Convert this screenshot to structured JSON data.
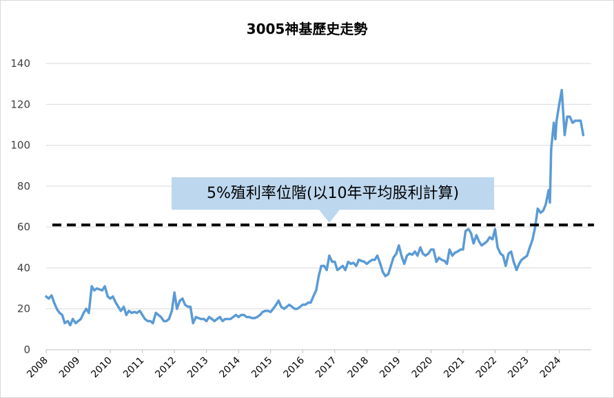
{
  "chart_data": {
    "type": "line",
    "title": "3005神基歷史走勢",
    "xlabel": "",
    "ylabel": "",
    "ylim": [
      0,
      140
    ],
    "yticks": [
      "0",
      "20",
      "40",
      "60",
      "80",
      "100",
      "120",
      "140"
    ],
    "xlim": [
      2008,
      2025
    ],
    "xticks": [
      "2008",
      "2009",
      "2010",
      "2011",
      "2012",
      "2013",
      "2014",
      "2015",
      "2016",
      "2017",
      "2018",
      "2019",
      "2020",
      "2021",
      "2022",
      "2023",
      "2024"
    ],
    "grid": "horizontal",
    "series": [
      {
        "color": "#5b9bd5",
        "points": [
          [
            2008.0,
            26
          ],
          [
            2008.08,
            25
          ],
          [
            2008.17,
            26.5
          ],
          [
            2008.25,
            23
          ],
          [
            2008.33,
            20
          ],
          [
            2008.42,
            18
          ],
          [
            2008.5,
            17
          ],
          [
            2008.58,
            13
          ],
          [
            2008.67,
            14
          ],
          [
            2008.75,
            12
          ],
          [
            2008.83,
            15
          ],
          [
            2008.92,
            13
          ],
          [
            2009.0,
            14
          ],
          [
            2009.08,
            15
          ],
          [
            2009.17,
            18
          ],
          [
            2009.25,
            20
          ],
          [
            2009.33,
            18
          ],
          [
            2009.42,
            31
          ],
          [
            2009.5,
            29
          ],
          [
            2009.58,
            30
          ],
          [
            2009.67,
            29.5
          ],
          [
            2009.75,
            29
          ],
          [
            2009.83,
            31
          ],
          [
            2009.92,
            26
          ],
          [
            2010.0,
            25
          ],
          [
            2010.08,
            26
          ],
          [
            2010.17,
            23
          ],
          [
            2010.25,
            21
          ],
          [
            2010.33,
            19
          ],
          [
            2010.42,
            21
          ],
          [
            2010.5,
            17
          ],
          [
            2010.58,
            19
          ],
          [
            2010.67,
            18
          ],
          [
            2010.75,
            18.5
          ],
          [
            2010.83,
            18
          ],
          [
            2010.92,
            19
          ],
          [
            2011.0,
            17
          ],
          [
            2011.08,
            15
          ],
          [
            2011.17,
            14
          ],
          [
            2011.25,
            14
          ],
          [
            2011.33,
            13
          ],
          [
            2011.42,
            18
          ],
          [
            2011.5,
            17
          ],
          [
            2011.58,
            16
          ],
          [
            2011.67,
            14
          ],
          [
            2011.75,
            14
          ],
          [
            2011.83,
            15
          ],
          [
            2011.92,
            19
          ],
          [
            2012.0,
            28
          ],
          [
            2012.08,
            20
          ],
          [
            2012.17,
            24
          ],
          [
            2012.25,
            25
          ],
          [
            2012.33,
            22
          ],
          [
            2012.42,
            21
          ],
          [
            2012.5,
            21
          ],
          [
            2012.58,
            13
          ],
          [
            2012.67,
            16
          ],
          [
            2012.75,
            15.5
          ],
          [
            2012.83,
            15
          ],
          [
            2012.92,
            15
          ],
          [
            2013.0,
            14
          ],
          [
            2013.08,
            16
          ],
          [
            2013.17,
            15
          ],
          [
            2013.25,
            14
          ],
          [
            2013.33,
            15
          ],
          [
            2013.42,
            16
          ],
          [
            2013.5,
            14
          ],
          [
            2013.58,
            15
          ],
          [
            2013.67,
            15
          ],
          [
            2013.75,
            15
          ],
          [
            2013.83,
            16
          ],
          [
            2013.92,
            17
          ],
          [
            2014.0,
            16
          ],
          [
            2014.08,
            17
          ],
          [
            2014.17,
            17
          ],
          [
            2014.25,
            16
          ],
          [
            2014.33,
            16
          ],
          [
            2014.42,
            15.5
          ],
          [
            2014.5,
            15.5
          ],
          [
            2014.58,
            16
          ],
          [
            2014.67,
            17
          ],
          [
            2014.75,
            18.5
          ],
          [
            2014.83,
            19
          ],
          [
            2014.92,
            19
          ],
          [
            2015.0,
            18.5
          ],
          [
            2015.08,
            20
          ],
          [
            2015.17,
            22
          ],
          [
            2015.25,
            24
          ],
          [
            2015.33,
            21
          ],
          [
            2015.42,
            20
          ],
          [
            2015.5,
            21
          ],
          [
            2015.58,
            22
          ],
          [
            2015.67,
            21
          ],
          [
            2015.75,
            20
          ],
          [
            2015.83,
            20
          ],
          [
            2015.92,
            21
          ],
          [
            2016.0,
            22
          ],
          [
            2016.08,
            22
          ],
          [
            2016.17,
            23
          ],
          [
            2016.25,
            23
          ],
          [
            2016.33,
            26
          ],
          [
            2016.42,
            29
          ],
          [
            2016.5,
            36
          ],
          [
            2016.58,
            41
          ],
          [
            2016.67,
            41
          ],
          [
            2016.75,
            39
          ],
          [
            2016.83,
            46
          ],
          [
            2016.92,
            43
          ],
          [
            2017.0,
            43
          ],
          [
            2017.08,
            39
          ],
          [
            2017.17,
            40
          ],
          [
            2017.25,
            41
          ],
          [
            2017.33,
            39
          ],
          [
            2017.42,
            43
          ],
          [
            2017.5,
            42
          ],
          [
            2017.58,
            42.5
          ],
          [
            2017.67,
            41
          ],
          [
            2017.75,
            44
          ],
          [
            2017.83,
            43.5
          ],
          [
            2017.92,
            43
          ],
          [
            2018.0,
            42
          ],
          [
            2018.08,
            43
          ],
          [
            2018.17,
            44
          ],
          [
            2018.25,
            44
          ],
          [
            2018.33,
            46
          ],
          [
            2018.42,
            42
          ],
          [
            2018.5,
            38
          ],
          [
            2018.58,
            36
          ],
          [
            2018.67,
            37
          ],
          [
            2018.75,
            41
          ],
          [
            2018.83,
            45
          ],
          [
            2018.92,
            47
          ],
          [
            2019.0,
            51
          ],
          [
            2019.08,
            46
          ],
          [
            2019.17,
            42
          ],
          [
            2019.25,
            46
          ],
          [
            2019.33,
            47
          ],
          [
            2019.42,
            46.5
          ],
          [
            2019.5,
            48
          ],
          [
            2019.58,
            46
          ],
          [
            2019.67,
            50
          ],
          [
            2019.75,
            47
          ],
          [
            2019.83,
            46
          ],
          [
            2019.92,
            47
          ],
          [
            2020.0,
            49
          ],
          [
            2020.08,
            49
          ],
          [
            2020.17,
            43
          ],
          [
            2020.25,
            45
          ],
          [
            2020.33,
            44
          ],
          [
            2020.42,
            43.5
          ],
          [
            2020.5,
            42
          ],
          [
            2020.58,
            49
          ],
          [
            2020.67,
            46
          ],
          [
            2020.75,
            47.5
          ],
          [
            2020.83,
            48
          ],
          [
            2020.92,
            49
          ],
          [
            2021.0,
            49
          ],
          [
            2021.08,
            58
          ],
          [
            2021.17,
            59
          ],
          [
            2021.25,
            57
          ],
          [
            2021.33,
            52
          ],
          [
            2021.42,
            56
          ],
          [
            2021.5,
            53
          ],
          [
            2021.58,
            51
          ],
          [
            2021.67,
            52
          ],
          [
            2021.75,
            53
          ],
          [
            2021.83,
            55
          ],
          [
            2021.92,
            54
          ],
          [
            2022.0,
            59
          ],
          [
            2022.08,
            50
          ],
          [
            2022.17,
            47
          ],
          [
            2022.25,
            46
          ],
          [
            2022.33,
            41
          ],
          [
            2022.42,
            47
          ],
          [
            2022.5,
            48
          ],
          [
            2022.58,
            43
          ],
          [
            2022.67,
            39
          ],
          [
            2022.75,
            42
          ],
          [
            2022.83,
            44
          ],
          [
            2022.92,
            45
          ],
          [
            2023.0,
            46
          ],
          [
            2023.08,
            50
          ],
          [
            2023.17,
            54
          ],
          [
            2023.25,
            60
          ],
          [
            2023.33,
            69
          ],
          [
            2023.42,
            67
          ],
          [
            2023.5,
            68
          ],
          [
            2023.58,
            71
          ],
          [
            2023.67,
            78
          ],
          [
            2023.71,
            72
          ],
          [
            2023.75,
            98
          ],
          [
            2023.83,
            111
          ],
          [
            2023.88,
            103
          ],
          [
            2023.92,
            112
          ],
          [
            2024.0,
            120
          ],
          [
            2024.08,
            127
          ],
          [
            2024.17,
            105
          ],
          [
            2024.25,
            114
          ],
          [
            2024.33,
            114
          ],
          [
            2024.42,
            111
          ],
          [
            2024.5,
            112
          ],
          [
            2024.58,
            112
          ],
          [
            2024.67,
            112
          ],
          [
            2024.75,
            105
          ]
        ]
      }
    ],
    "reference_line": {
      "value": 61,
      "style": "dashed",
      "color": "#000000"
    },
    "annotation": {
      "text": "5%殖利率位階(以10年平均股利計算)",
      "fill": "#bdd7ee"
    }
  }
}
